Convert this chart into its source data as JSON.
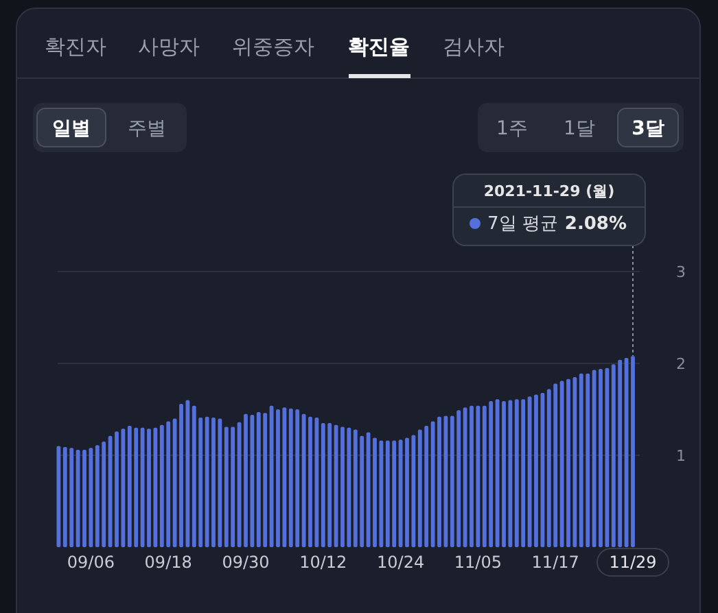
{
  "chart_data": {
    "type": "bar",
    "categories": [
      null,
      null,
      null,
      null,
      null,
      "09/06",
      null,
      null,
      null,
      null,
      null,
      null,
      null,
      null,
      null,
      null,
      null,
      "09/18",
      null,
      null,
      null,
      null,
      null,
      null,
      null,
      null,
      null,
      null,
      null,
      "09/30",
      null,
      null,
      null,
      null,
      null,
      null,
      null,
      null,
      null,
      null,
      null,
      "10/12",
      null,
      null,
      null,
      null,
      null,
      null,
      null,
      null,
      null,
      null,
      null,
      "10/24",
      null,
      null,
      null,
      null,
      null,
      null,
      null,
      null,
      null,
      null,
      null,
      "11/05",
      null,
      null,
      null,
      null,
      null,
      null,
      null,
      null,
      null,
      null,
      null,
      "11/17",
      null,
      null,
      null,
      null,
      null,
      null,
      null,
      null,
      null,
      null,
      null,
      "11/29"
    ],
    "series": [
      {
        "name": "7일 평균",
        "color": "#5470dc",
        "values": [
          1.1,
          1.09,
          1.08,
          1.06,
          1.06,
          1.08,
          1.11,
          1.15,
          1.21,
          1.26,
          1.29,
          1.32,
          1.3,
          1.3,
          1.29,
          1.3,
          1.33,
          1.37,
          1.4,
          1.56,
          1.6,
          1.54,
          1.41,
          1.42,
          1.41,
          1.4,
          1.31,
          1.31,
          1.36,
          1.45,
          1.44,
          1.47,
          1.46,
          1.54,
          1.5,
          1.52,
          1.51,
          1.5,
          1.45,
          1.42,
          1.41,
          1.35,
          1.35,
          1.33,
          1.31,
          1.3,
          1.28,
          1.21,
          1.25,
          1.19,
          1.16,
          1.16,
          1.16,
          1.17,
          1.19,
          1.22,
          1.28,
          1.32,
          1.37,
          1.42,
          1.43,
          1.43,
          1.49,
          1.52,
          1.54,
          1.54,
          1.54,
          1.59,
          1.61,
          1.59,
          1.6,
          1.61,
          1.61,
          1.64,
          1.66,
          1.68,
          1.72,
          1.78,
          1.81,
          1.83,
          1.85,
          1.89,
          1.89,
          1.93,
          1.94,
          1.95,
          1.99,
          2.04,
          2.06,
          2.08
        ]
      }
    ],
    "ylim": [
      0,
      3
    ],
    "yticks": [
      1,
      2,
      3
    ],
    "grid": "y",
    "legend": "top right",
    "annotations": [
      "확진자",
      "사망자",
      "위중증자",
      "확진율",
      "검사자",
      "일별",
      "주별",
      "1주",
      "1달",
      "3달",
      "2021-11-29 (월)",
      {
        "text": "2.08%",
        "x": "11/29",
        "y": 2.08
      }
    ]
  }
}
